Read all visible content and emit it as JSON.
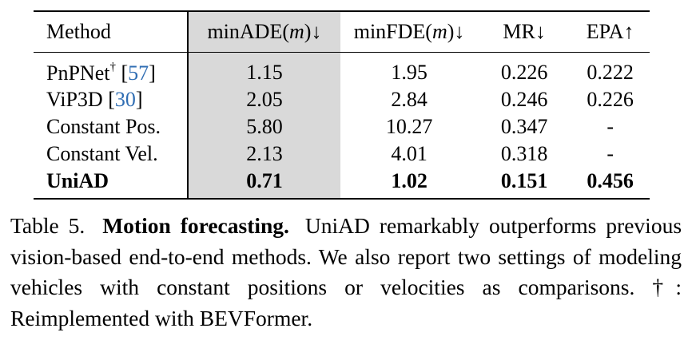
{
  "table": {
    "columns": {
      "method": "Method",
      "min_ade_pre": "minADE(",
      "min_ade_unit": "m",
      "min_ade_post": ")↓",
      "min_fde_pre": "minFDE(",
      "min_fde_unit": "m",
      "min_fde_post": ")↓",
      "mr": "MR↓",
      "epa": "EPA↑"
    },
    "rows": [
      {
        "method": "PnPNet",
        "method_sup": "†",
        "cite": "57",
        "min_ade": "1.15",
        "min_fde": "1.95",
        "mr": "0.226",
        "epa": "0.222"
      },
      {
        "method": "ViP3D",
        "method_sup": "",
        "cite": "30",
        "min_ade": "2.05",
        "min_fde": "2.84",
        "mr": "0.246",
        "epa": "0.226"
      },
      {
        "method": "Constant Pos.",
        "method_sup": "",
        "cite": "",
        "min_ade": "5.80",
        "min_fde": "10.27",
        "mr": "0.347",
        "epa": "-"
      },
      {
        "method": "Constant Vel.",
        "method_sup": "",
        "cite": "",
        "min_ade": "2.13",
        "min_fde": "4.01",
        "mr": "0.318",
        "epa": "-"
      },
      {
        "method": "UniAD",
        "method_sup": "",
        "cite": "",
        "min_ade": "0.71",
        "min_fde": "1.02",
        "mr": "0.151",
        "epa": "0.456"
      }
    ],
    "highlight_color": "#d9d9d9",
    "citation_color": "#2f6db3"
  },
  "caption": {
    "label": "Table 5.",
    "title": "Motion forecasting.",
    "text": "UniAD remarkably outperforms previous vision-based end-to-end methods. We also report two settings of modeling vehicles with constant positions or velocities as comparisons. †: Reimplemented with BEVFormer."
  }
}
